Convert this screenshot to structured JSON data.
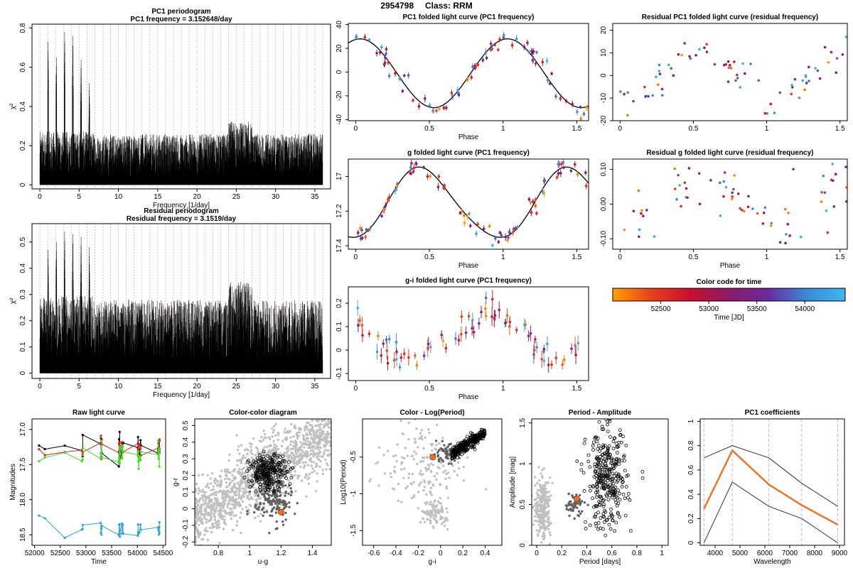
{
  "page": {
    "id": "2954798",
    "class_text": "Class: RRM"
  },
  "colors": {
    "time_gradient": [
      "#ffa000",
      "#e8401c",
      "#c8102e",
      "#8b1a6a",
      "#6a2a9a",
      "#3a8ad8",
      "#41b6f0"
    ],
    "grey": "#c0c0c0",
    "dark_grey": "#606060",
    "orange": "#f07020",
    "green": "#40dd20",
    "red": "#e02020",
    "blue": "#30a0e0",
    "pink_dash": "#f0a0c0"
  },
  "chart_data": [
    {
      "id": "pc1_periodogram",
      "type": "bar",
      "title": "PC1 periodogram",
      "subtitle": "PC1 frequency = 3.152648/day",
      "xlabel": "Frequency [1/day]",
      "ylabel": "χ²",
      "xlim": [
        -1,
        37
      ],
      "ylim": [
        -0.02,
        0.82
      ],
      "xticks": [
        0,
        5,
        10,
        15,
        20,
        25,
        30,
        35
      ],
      "yticks": [
        0.0,
        0.2,
        0.4,
        0.6,
        0.8
      ],
      "peaks_x": [
        1.05,
        2.1,
        3.15,
        4.2,
        5.25,
        6.3
      ],
      "peaks_y": [
        0.73,
        0.65,
        0.78,
        0.76,
        0.64,
        0.52
      ],
      "baseline": 0.26,
      "dashed_x_spacing": 1.0
    },
    {
      "id": "residual_periodogram",
      "type": "bar",
      "title": "Residual periodogram",
      "subtitle": "Residual frequency = 3.1519/day",
      "xlabel": "Frequency [1/day]",
      "ylabel": "χ²",
      "xlim": [
        -1,
        37
      ],
      "ylim": [
        -0.02,
        0.57
      ],
      "xticks": [
        0,
        5,
        10,
        15,
        20,
        25,
        30,
        35
      ],
      "yticks": [
        0.0,
        0.1,
        0.2,
        0.3,
        0.4,
        0.5
      ],
      "peaks_x": [
        1.05,
        2.1,
        3.15,
        4.2,
        5.25,
        6.3
      ],
      "peaks_y": [
        0.47,
        0.5,
        0.54,
        0.53,
        0.52,
        0.48
      ],
      "baseline": 0.28,
      "dashed_x_spacing": 1.0
    },
    {
      "id": "pc1_folded",
      "type": "scatter",
      "title": "PC1 folded light curve (PC1 frequency)",
      "xlabel": "Phase",
      "xlim": [
        -0.05,
        1.58
      ],
      "ylim": [
        -41,
        41
      ],
      "xticks": [
        0.0,
        0.5,
        1.0,
        1.5
      ],
      "yticks": [
        -40,
        -20,
        0,
        20,
        40
      ],
      "curve": "sine_with_skew",
      "amplitude": 29,
      "point_count": 52
    },
    {
      "id": "residual_pc1_folded",
      "type": "scatter",
      "title": "Residual PC1 folded light curve (residual frequency)",
      "xlim": [
        -0.05,
        1.55
      ],
      "ylim": [
        -20,
        23
      ],
      "xticks": [
        0.0,
        0.5,
        1.0,
        1.5
      ],
      "yticks": [
        -20,
        -10,
        0,
        10,
        20
      ],
      "point_count": 48
    },
    {
      "id": "g_folded",
      "type": "scatter",
      "title": "g folded light curve (PC1 frequency)",
      "xlabel": "Phase",
      "xlim": [
        -0.05,
        1.58
      ],
      "ylim": [
        17.42,
        16.9
      ],
      "xticks": [
        0.0,
        0.5,
        1.0,
        1.5
      ],
      "yticks": [
        17.0,
        17.2,
        17.4
      ],
      "point_count": 52
    },
    {
      "id": "residual_g_folded",
      "type": "scatter",
      "title": "Residual g folded light curve (residual frequency)",
      "xlabel": "Phase",
      "xlim": [
        -0.05,
        1.55
      ],
      "ylim": [
        -0.13,
        0.13
      ],
      "xticks": [
        0.0,
        0.5,
        1.0,
        1.5
      ],
      "yticks": [
        -0.1,
        0.0,
        0.1
      ],
      "ytick_labels": [
        "-0.10",
        "0.00",
        "0.10"
      ],
      "point_count": 48
    },
    {
      "id": "gi_folded",
      "type": "scatter",
      "title": "g-i folded light curve (PC1 frequency)",
      "xlabel": "Phase",
      "xlim": [
        -0.05,
        1.58
      ],
      "ylim": [
        -0.13,
        0.27
      ],
      "xticks": [
        0.0,
        0.5,
        1.0,
        1.5
      ],
      "yticks": [
        -0.1,
        0.0,
        0.1,
        0.2
      ],
      "point_count": 50
    },
    {
      "id": "color_bar",
      "type": "heatmap",
      "title": "Color code for time",
      "xlabel": "Time [JD]",
      "xlim": [
        52000,
        54420
      ],
      "xticks": [
        52500,
        53000,
        53500,
        54000
      ]
    },
    {
      "id": "raw_light_curve",
      "type": "line",
      "title": "Raw light curve",
      "xlabel": "Time",
      "ylabel": "Magnitudes",
      "xlim": [
        51950,
        54550
      ],
      "ylim": [
        18.65,
        16.85
      ],
      "xticks": [
        52000,
        52500,
        53000,
        53500,
        54000,
        54500
      ],
      "yticks": [
        17.0,
        17.5,
        18.0,
        18.5
      ],
      "series": [
        {
          "color_key": "black",
          "mean": 17.23
        },
        {
          "color_key": "red",
          "mean": 17.27
        },
        {
          "color_key": "green",
          "mean": 17.37
        },
        {
          "color_key": "blue",
          "mean": 18.42
        }
      ]
    },
    {
      "id": "color_color",
      "type": "scatter",
      "title": "Color-color diagram",
      "xlabel": "u-g",
      "ylabel": "g-r",
      "xlim": [
        0.65,
        1.52
      ],
      "ylim": [
        -0.22,
        0.54
      ],
      "xticks": [
        0.8,
        1.0,
        1.2,
        1.4
      ],
      "yticks": [
        -0.2,
        -0.1,
        0.0,
        0.1,
        0.2,
        0.3,
        0.4,
        0.5
      ],
      "star": {
        "x": 1.2,
        "y": -0.02
      }
    },
    {
      "id": "color_logperiod",
      "type": "scatter",
      "title": "Color - Log(Period)",
      "xlabel": "g-i",
      "ylabel": "Log10(Period)",
      "xlim": [
        -0.7,
        0.55
      ],
      "ylim": [
        -1.7,
        0.02
      ],
      "xticks": [
        -0.6,
        -0.4,
        -0.2,
        0.0,
        0.2,
        0.4
      ],
      "yticks": [
        -1.5,
        -1.0,
        -0.5
      ],
      "star": {
        "x": -0.07,
        "y": -0.5
      }
    },
    {
      "id": "period_amplitude",
      "type": "scatter",
      "title": "Period - Amplitude",
      "xlabel": "Period [days]",
      "ylabel": "Amplitude [mag]",
      "xlim": [
        -0.04,
        1.05
      ],
      "ylim": [
        0.0,
        1.55
      ],
      "xticks": [
        0.0,
        0.2,
        0.4,
        0.6,
        0.8,
        1.0
      ],
      "yticks": [
        0.0,
        0.5,
        1.0,
        1.5
      ],
      "star": {
        "x": 0.32,
        "y": 0.57
      }
    },
    {
      "id": "pc1_coefficients",
      "type": "line",
      "title": "PC1 coefficients",
      "xlabel": "Wavelength",
      "xlim": [
        3400,
        9200
      ],
      "ylim": [
        -0.02,
        1.02
      ],
      "xticks": [
        4000,
        5000,
        6000,
        7000,
        8000,
        9000
      ],
      "yticks": [
        0.0,
        0.2,
        0.4,
        0.6,
        0.8,
        1.0
      ],
      "x": [
        3550,
        4690,
        6160,
        7480,
        8930
      ],
      "series": [
        {
          "name": "",
          "values": [
            0.28,
            0.76,
            0.48,
            0.31,
            0.15
          ]
        },
        {
          "name": "",
          "values": [
            0.7,
            0.8,
            0.7,
            0.49,
            0.3
          ]
        },
        {
          "name": "",
          "values": [
            0.0,
            0.5,
            0.3,
            0.2,
            0.0
          ]
        }
      ],
      "dashed_x": [
        3550,
        4690,
        6160,
        7480,
        8930
      ]
    }
  ]
}
